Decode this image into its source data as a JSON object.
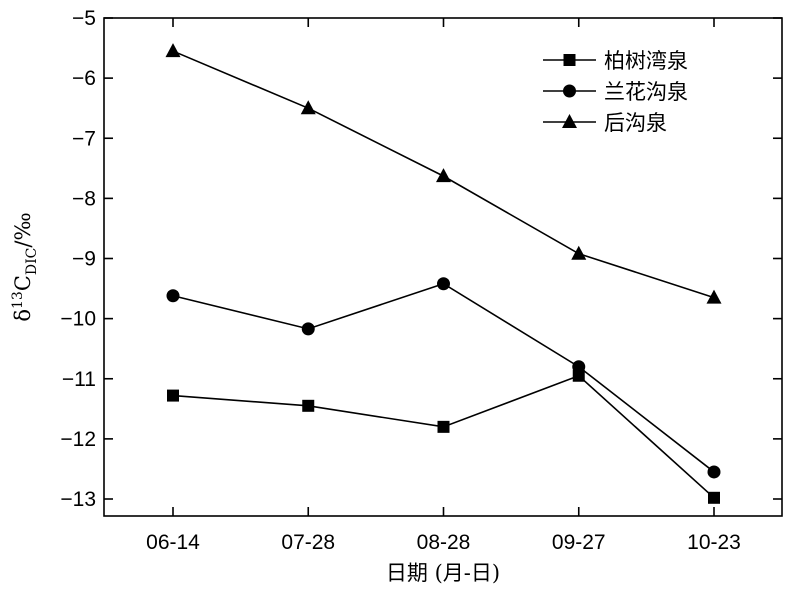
{
  "chart_data": {
    "type": "line",
    "title": "",
    "xlabel": "日期 (月-日)",
    "ylabel": {
      "prefix": "δ",
      "superscript": "13",
      "main": "C",
      "subscript": "DIC",
      "suffix": "/‰"
    },
    "categories": [
      "06-14",
      "07-28",
      "08-28",
      "09-27",
      "10-23"
    ],
    "ylim": [
      -13.3,
      -5
    ],
    "yticks": [
      -5,
      -6,
      -7,
      -8,
      -9,
      -10,
      -11,
      -12,
      -13
    ],
    "ytick_labels": [
      "−5",
      "−6",
      "−7",
      "−8",
      "−9",
      "−10",
      "−11",
      "−12",
      "−13"
    ],
    "grid": false,
    "legend_position": "top-right",
    "series": [
      {
        "name": "柏树湾泉",
        "marker": "square",
        "values": [
          -11.28,
          -11.45,
          -11.8,
          -10.95,
          -12.98
        ]
      },
      {
        "name": "兰花沟泉",
        "marker": "circle",
        "values": [
          -9.62,
          -10.17,
          -9.42,
          -10.8,
          -12.55
        ]
      },
      {
        "name": "后沟泉",
        "marker": "triangle",
        "values": [
          -5.55,
          -6.5,
          -7.63,
          -8.92,
          -9.65
        ]
      }
    ]
  }
}
